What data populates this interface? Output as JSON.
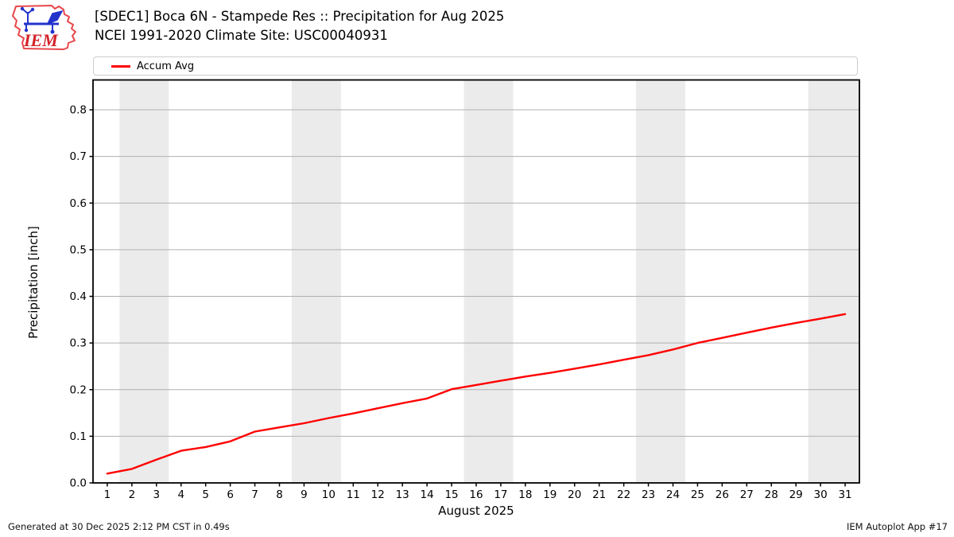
{
  "header": {
    "title_line1": "[SDEC1] Boca 6N - Stampede Res :: Precipitation for Aug 2025",
    "title_line2": "NCEI 1991-2020 Climate Site: USC00040931",
    "logo_text": "IEM"
  },
  "legend": {
    "entries": [
      {
        "label": "Accum Avg",
        "color": "#ff0000"
      }
    ]
  },
  "chart_data": {
    "type": "line",
    "title": "[SDEC1] Boca 6N - Stampede Res :: Precipitation for Aug 2025",
    "subtitle": "NCEI 1991-2020 Climate Site: USC00040931",
    "xlabel": "August 2025",
    "ylabel": "Precipitation [inch]",
    "xlim": [
      0.42,
      31.58
    ],
    "ylim": [
      0,
      0.864
    ],
    "x_ticks": [
      1,
      2,
      3,
      4,
      5,
      6,
      7,
      8,
      9,
      10,
      11,
      12,
      13,
      14,
      15,
      16,
      17,
      18,
      19,
      20,
      21,
      22,
      23,
      24,
      25,
      26,
      27,
      28,
      29,
      30,
      31
    ],
    "y_ticks": [
      0.0,
      0.1,
      0.2,
      0.3,
      0.4,
      0.5,
      0.6,
      0.7,
      0.8
    ],
    "y_tick_labels": [
      "0.0",
      "0.1",
      "0.2",
      "0.3",
      "0.4",
      "0.5",
      "0.6",
      "0.7",
      "0.8"
    ],
    "grid": "horizontal",
    "legend_position": "top",
    "weekend_bands": [
      [
        1.5,
        3.5
      ],
      [
        8.5,
        10.5
      ],
      [
        15.5,
        17.5
      ],
      [
        22.5,
        24.5
      ],
      [
        29.5,
        31.58
      ]
    ],
    "series": [
      {
        "name": "Accum Avg",
        "color": "#ff0000",
        "x": [
          1,
          2,
          3,
          4,
          5,
          6,
          7,
          8,
          9,
          10,
          11,
          12,
          13,
          14,
          15,
          16,
          17,
          18,
          19,
          20,
          21,
          22,
          23,
          24,
          25,
          26,
          27,
          28,
          29,
          30,
          31
        ],
        "values": [
          0.02,
          0.03,
          0.05,
          0.069,
          0.077,
          0.089,
          0.11,
          0.119,
          0.128,
          0.139,
          0.149,
          0.16,
          0.171,
          0.181,
          0.201,
          0.21,
          0.219,
          0.228,
          0.236,
          0.245,
          0.254,
          0.264,
          0.274,
          0.286,
          0.3,
          0.311,
          0.322,
          0.333,
          0.343,
          0.352,
          0.362
        ]
      }
    ],
    "colors": {
      "line": "#ff0000",
      "weekend_band": "#ebebeb",
      "gridline": "#b0b0b0",
      "axis_frame": "#000000"
    }
  },
  "footer": {
    "left": "Generated at 30 Dec 2025 2:12 PM CST in 0.49s",
    "right": "IEM Autoplot App #17"
  }
}
